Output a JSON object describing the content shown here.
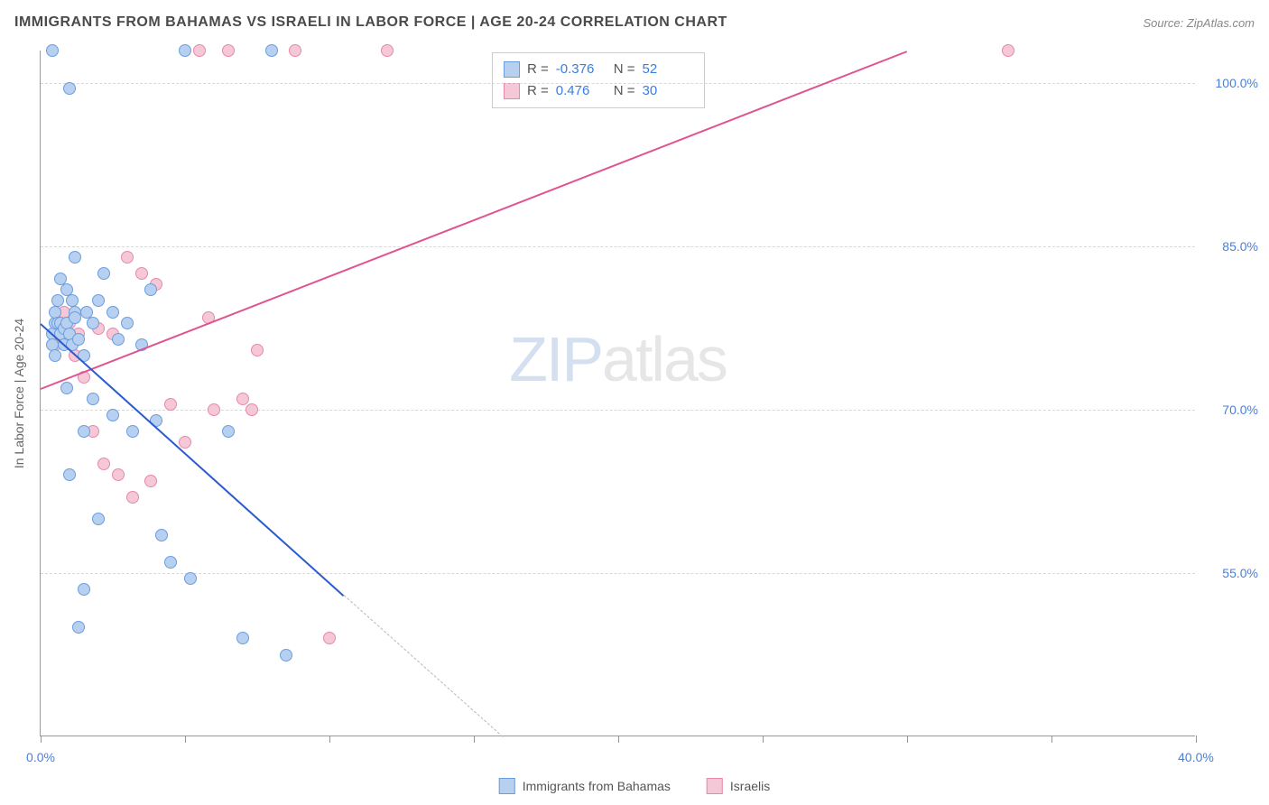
{
  "header": {
    "title": "IMMIGRANTS FROM BAHAMAS VS ISRAELI IN LABOR FORCE | AGE 20-24 CORRELATION CHART",
    "source": "Source: ZipAtlas.com"
  },
  "watermark": {
    "part1": "ZIP",
    "part2": "atlas"
  },
  "chart": {
    "type": "scatter",
    "ylabel": "In Labor Force | Age 20-24",
    "background_color": "#ffffff",
    "grid_color": "#d8d8d8",
    "axis_color": "#999999",
    "tick_label_color": "#4a7fd8",
    "xlim": [
      0,
      40
    ],
    "ylim": [
      40,
      103
    ],
    "xticks": [
      0,
      5,
      10,
      15,
      20,
      25,
      30,
      35,
      40
    ],
    "xtick_labels_shown": {
      "0": "0.0%",
      "40": "40.0%"
    },
    "yticks": [
      55,
      70,
      85,
      100
    ],
    "ytick_labels": [
      "55.0%",
      "70.0%",
      "85.0%",
      "100.0%"
    ],
    "marker_radius": 7,
    "series": {
      "bahamas": {
        "label": "Immigrants from Bahamas",
        "fill_color": "#b8d0f0",
        "stroke_color": "#6a9de0",
        "line_color": "#2c5bd0",
        "line_width": 2,
        "R": "-0.376",
        "N": "52",
        "trend": {
          "x1": 0,
          "y1": 78,
          "x2": 10.5,
          "y2": 53
        },
        "trend_dashed": {
          "x1": 10.5,
          "y1": 53,
          "x2": 16,
          "y2": 40
        },
        "points": [
          [
            0.4,
            103
          ],
          [
            0.4,
            77
          ],
          [
            0.4,
            76
          ],
          [
            0.5,
            78
          ],
          [
            0.5,
            79
          ],
          [
            0.5,
            75
          ],
          [
            0.6,
            80
          ],
          [
            0.6,
            78
          ],
          [
            0.7,
            82
          ],
          [
            0.7,
            77
          ],
          [
            0.7,
            77
          ],
          [
            0.7,
            78
          ],
          [
            0.8,
            77.5
          ],
          [
            0.8,
            76
          ],
          [
            0.9,
            81
          ],
          [
            0.9,
            78
          ],
          [
            0.9,
            72
          ],
          [
            1.0,
            99.5
          ],
          [
            1.0,
            77
          ],
          [
            1.0,
            64
          ],
          [
            1.1,
            80
          ],
          [
            1.1,
            76
          ],
          [
            1.2,
            79
          ],
          [
            1.2,
            78.5
          ],
          [
            1.2,
            84
          ],
          [
            1.3,
            76.5
          ],
          [
            1.3,
            50
          ],
          [
            1.5,
            75
          ],
          [
            1.5,
            68
          ],
          [
            1.5,
            53.5
          ],
          [
            1.6,
            79
          ],
          [
            1.8,
            78
          ],
          [
            1.8,
            71
          ],
          [
            2.0,
            80
          ],
          [
            2.0,
            60
          ],
          [
            2.2,
            82.5
          ],
          [
            2.5,
            79
          ],
          [
            2.5,
            69.5
          ],
          [
            2.7,
            76.5
          ],
          [
            3.0,
            78
          ],
          [
            3.2,
            68
          ],
          [
            3.5,
            76
          ],
          [
            3.8,
            81
          ],
          [
            4.0,
            69
          ],
          [
            4.2,
            58.5
          ],
          [
            4.5,
            56
          ],
          [
            5.0,
            103
          ],
          [
            5.2,
            54.5
          ],
          [
            6.5,
            68
          ],
          [
            7.0,
            49
          ],
          [
            8.0,
            103
          ],
          [
            8.5,
            47.5
          ]
        ]
      },
      "israelis": {
        "label": "Israelis",
        "fill_color": "#f5c8d8",
        "stroke_color": "#e888aa",
        "line_color": "#e05290",
        "line_width": 2,
        "R": "0.476",
        "N": "30",
        "trend": {
          "x1": 0,
          "y1": 72,
          "x2": 30,
          "y2": 103
        },
        "points": [
          [
            0.5,
            76
          ],
          [
            0.6,
            77.5
          ],
          [
            0.8,
            79
          ],
          [
            1.0,
            78
          ],
          [
            1.2,
            75
          ],
          [
            1.3,
            77
          ],
          [
            1.5,
            73
          ],
          [
            1.8,
            68
          ],
          [
            2.0,
            77.5
          ],
          [
            2.2,
            65
          ],
          [
            2.5,
            77
          ],
          [
            2.7,
            64
          ],
          [
            3.0,
            84
          ],
          [
            3.2,
            62
          ],
          [
            3.5,
            82.5
          ],
          [
            3.8,
            63.5
          ],
          [
            4.0,
            81.5
          ],
          [
            4.5,
            70.5
          ],
          [
            5.0,
            67
          ],
          [
            5.5,
            103
          ],
          [
            5.8,
            78.5
          ],
          [
            6.0,
            70
          ],
          [
            6.5,
            103
          ],
          [
            7.0,
            71
          ],
          [
            7.3,
            70
          ],
          [
            7.5,
            75.5
          ],
          [
            8.8,
            103
          ],
          [
            10.0,
            49
          ],
          [
            12.0,
            103
          ],
          [
            33.5,
            103
          ]
        ]
      }
    }
  },
  "legend_box": {
    "rows": [
      {
        "swatch": "bahamas",
        "r_label": "R =",
        "r_val": "-0.376",
        "n_label": "N =",
        "n_val": "52"
      },
      {
        "swatch": "israelis",
        "r_label": "R =",
        "r_val": "0.476",
        "n_label": "N =",
        "n_val": "30"
      }
    ]
  },
  "bottom_legend": {
    "items": [
      {
        "swatch": "bahamas",
        "label": "Immigrants from Bahamas"
      },
      {
        "swatch": "israelis",
        "label": "Israelis"
      }
    ]
  }
}
